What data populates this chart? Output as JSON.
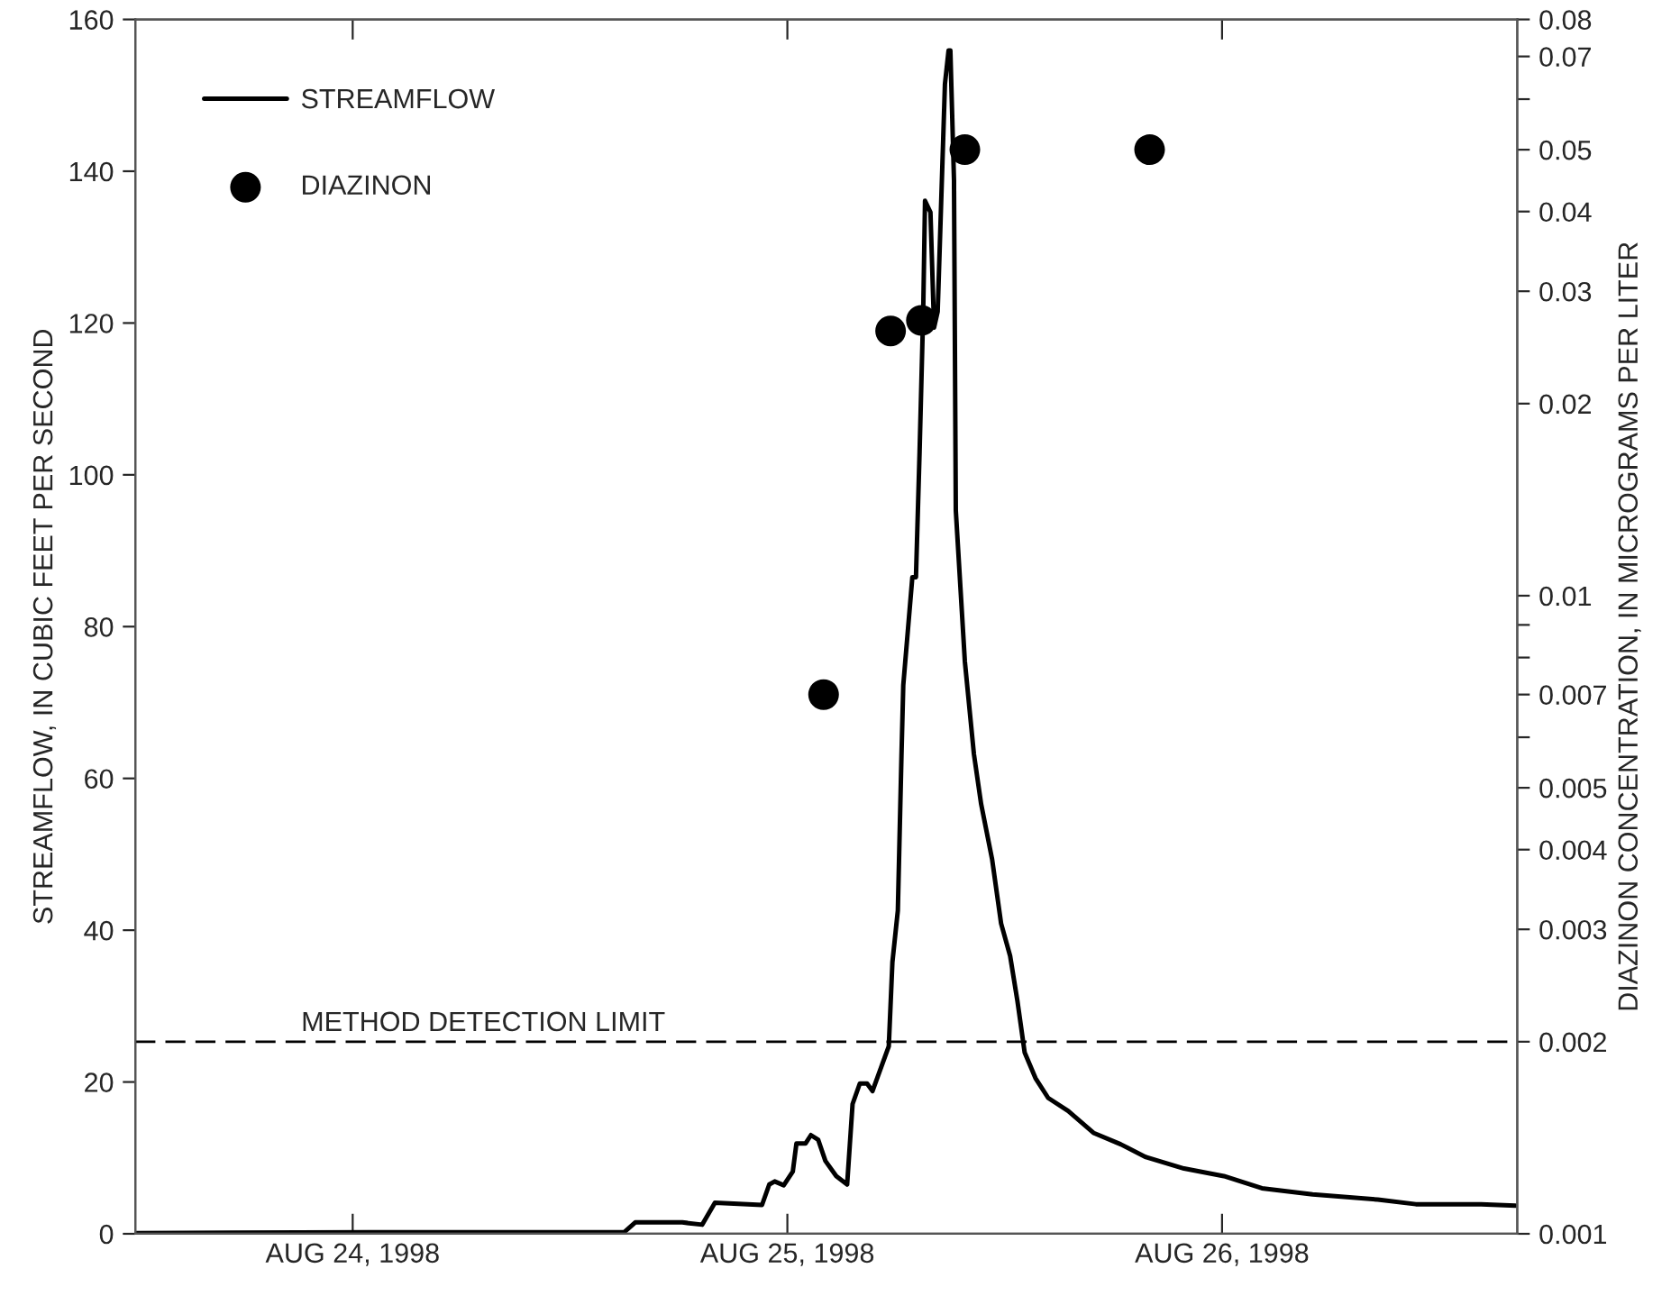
{
  "chart_data": {
    "type": "line",
    "ylabel": "STREAMFLOW, IN CUBIC FEET PER SECOND",
    "y2label": "DIAZINON CONCENTRATION, IN MICROGRAMS PER LITER",
    "xlim": [
      "1998-08-24T00:00",
      "1998-08-27T04:18"
    ],
    "xticks": [
      {
        "value": "1998-08-24T12:00",
        "label": "AUG 24, 1998"
      },
      {
        "value": "1998-08-25T12:00",
        "label": "AUG 25, 1998"
      },
      {
        "value": "1998-08-26T12:00",
        "label": "AUG 26, 1998"
      }
    ],
    "ylim": [
      0,
      160
    ],
    "yticks": [
      0,
      20,
      40,
      60,
      80,
      100,
      120,
      140,
      160
    ],
    "log": "y2",
    "y2lim": [
      0.001,
      0.08
    ],
    "y2ticks": [
      0.001,
      0.002,
      0.003,
      0.004,
      0.005,
      {
        "value": 0.006,
        "label": null
      },
      0.007,
      {
        "value": 0.008,
        "label": null
      },
      {
        "value": 0.009,
        "label": null
      },
      0.01,
      0.02,
      0.03,
      0.04,
      0.05,
      {
        "value": 0.06,
        "label": null
      },
      0.07,
      0.08
    ],
    "series": [
      {
        "name": "STREAMFLOW",
        "color": "#000000",
        "line_style": "solid",
        "x": [
          "1998-08-24T00:00",
          "1998-08-24T12:54",
          "1998-08-25T02:59",
          "1998-08-25T03:36",
          "1998-08-25T06:12",
          "1998-08-25T07:18",
          "1998-08-25T08:00",
          "1998-08-25T10:36",
          "1998-08-25T11:00",
          "1998-08-25T11:18",
          "1998-08-25T11:48",
          "1998-08-25T12:18",
          "1998-08-25T12:30",
          "1998-08-25T13:00",
          "1998-08-25T13:18",
          "1998-08-25T13:42",
          "1998-08-25T14:06",
          "1998-08-25T14:42",
          "1998-08-25T15:18",
          "1998-08-25T15:36",
          "1998-08-25T16:00",
          "1998-08-25T16:24",
          "1998-08-25T16:42",
          "1998-08-25T17:36",
          "1998-08-25T17:48",
          "1998-08-25T18:06",
          "1998-08-25T18:18",
          "1998-08-25T18:24",
          "1998-08-25T18:54",
          "1998-08-25T19:06",
          "1998-08-25T19:18",
          "1998-08-25T19:30",
          "1998-08-25T19:36",
          "1998-08-25T19:54",
          "1998-08-25T20:06",
          "1998-08-25T20:18",
          "1998-08-25T20:42",
          "1998-08-25T20:54",
          "1998-08-25T21:00",
          "1998-08-25T21:12",
          "1998-08-25T21:18",
          "1998-08-25T21:48",
          "1998-08-25T22:18",
          "1998-08-25T22:42",
          "1998-08-25T23:18",
          "1998-08-25T23:48",
          "1998-08-26T00:18",
          "1998-08-26T00:42",
          "1998-08-26T01:06",
          "1998-08-26T01:42",
          "1998-08-26T02:24",
          "1998-08-26T03:30",
          "1998-08-26T04:54",
          "1998-08-26T06:24",
          "1998-08-26T07:48",
          "1998-08-26T09:54",
          "1998-08-26T12:06",
          "1998-08-26T14:12",
          "1998-08-26T17:00",
          "1998-08-26T20:36",
          "1998-08-26T22:42",
          "1998-08-27T02:18",
          "1998-08-27T04:12"
        ],
        "values": [
          0.1,
          0.2,
          0.2,
          1.5,
          1.5,
          1.2,
          4.1,
          3.8,
          6.5,
          6.9,
          6.4,
          8.2,
          11.9,
          11.9,
          13.0,
          12.4,
          9.6,
          7.6,
          6.5,
          17.1,
          19.8,
          19.8,
          18.8,
          24.7,
          35.8,
          42.6,
          63,
          72.3,
          86.5,
          86.5,
          103,
          121.5,
          136.1,
          134.6,
          119.4,
          121.5,
          151.5,
          155.9,
          155.9,
          138.8,
          95.3,
          75.4,
          63.2,
          56.6,
          49.4,
          40.9,
          36.6,
          30.7,
          23.9,
          20.5,
          17.9,
          16.2,
          13.3,
          11.8,
          10.1,
          8.6,
          7.6,
          6.0,
          5.2,
          4.5,
          3.9,
          3.9,
          3.7
        ]
      },
      {
        "name": "DIAZINON",
        "type": "scatter",
        "axis": "y2",
        "color": "#000000",
        "marker": "circle",
        "x": [
          "1998-08-25T14:00",
          "1998-08-25T17:42",
          "1998-08-25T19:24",
          "1998-08-25T21:48",
          "1998-08-26T08:00"
        ],
        "values": [
          0.007,
          0.026,
          0.027,
          0.05,
          0.05
        ]
      }
    ],
    "ref_lines": [
      {
        "axis": "y2",
        "value": 0.002,
        "label": "METHOD DETECTION LIMIT",
        "color": "#000000",
        "line_style": "dashed"
      }
    ],
    "legend": "top left",
    "grid": false
  }
}
